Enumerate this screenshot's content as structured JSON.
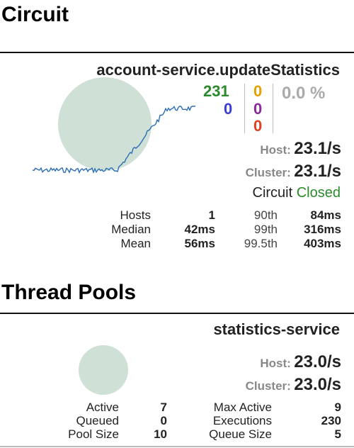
{
  "circuit_section": {
    "title": "Circuit",
    "name": "account-service.updateStatistics",
    "counts": {
      "success": "231",
      "short_circuited": "0",
      "bad_request": "0",
      "timeout": "0",
      "rejected": "0",
      "failure": "0",
      "error_pct": "0.0 %"
    },
    "colors": {
      "success": "#2b8a2b",
      "short_circuited": "#3b3bd6",
      "timeout": "#e6a000",
      "rejected": "#8b2b9b",
      "failure": "#e04020",
      "error_pct": "#aaaaaa",
      "closed": "#2b8a2b",
      "circle": "#cfe0d6",
      "sparkline": "#2a6db5"
    },
    "host_label": "Host:",
    "host_rate": "23.1/s",
    "cluster_label": "Cluster:",
    "cluster_rate": "23.1/s",
    "circuit_label": "Circuit",
    "circuit_status": "Closed",
    "stats": {
      "hosts_label": "Hosts",
      "hosts_value": "1",
      "median_label": "Median",
      "median_value": "42ms",
      "mean_label": "Mean",
      "mean_value": "56ms",
      "p90_label": "90th",
      "p90_value": "84ms",
      "p99_label": "99th",
      "p99_value": "316ms",
      "p995_label": "99.5th",
      "p995_value": "403ms"
    }
  },
  "thread_pools_section": {
    "title": "Thread Pools",
    "name": "statistics-service",
    "host_label": "Host:",
    "host_rate": "23.0/s",
    "cluster_label": "Cluster:",
    "cluster_rate": "23.0/s",
    "stats": {
      "active_label": "Active",
      "active_value": "7",
      "queued_label": "Queued",
      "queued_value": "0",
      "pool_size_label": "Pool Size",
      "pool_size_value": "10",
      "max_active_label": "Max Active",
      "max_active_value": "9",
      "executions_label": "Executions",
      "executions_value": "230",
      "queue_size_label": "Queue Size",
      "queue_size_value": "5"
    }
  }
}
